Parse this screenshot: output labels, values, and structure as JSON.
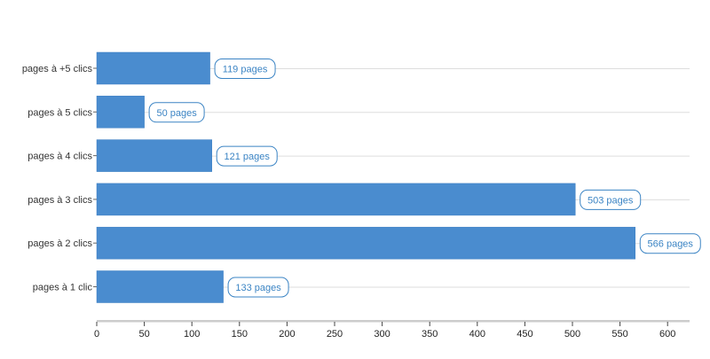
{
  "chart_data": {
    "type": "bar",
    "orientation": "horizontal",
    "categories": [
      "pages à +5 clics",
      "pages à 5 clics",
      "pages à 4 clics",
      "pages à 3 clics",
      "pages à 2 clics",
      "pages à 1 clic"
    ],
    "values": [
      119,
      50,
      121,
      503,
      566,
      133
    ],
    "data_labels": [
      "119 pages",
      "50 pages",
      "121 pages",
      "503 pages",
      "566 pages",
      "133 pages"
    ],
    "title": "",
    "xlabel": "",
    "ylabel": "",
    "xlim": [
      0,
      620
    ],
    "x_ticks": [
      0,
      50,
      100,
      150,
      200,
      250,
      300,
      350,
      400,
      450,
      500,
      550,
      600
    ],
    "grid": "horizontal lines per category",
    "legend": "none",
    "colors": {
      "bar": "#4a8ccf",
      "bar_edge": "#3d7fc2",
      "label_border": "#3b84c4",
      "label_text": "#3b84c4",
      "gridline": "#dddddd",
      "axis": "#cccccc"
    }
  }
}
